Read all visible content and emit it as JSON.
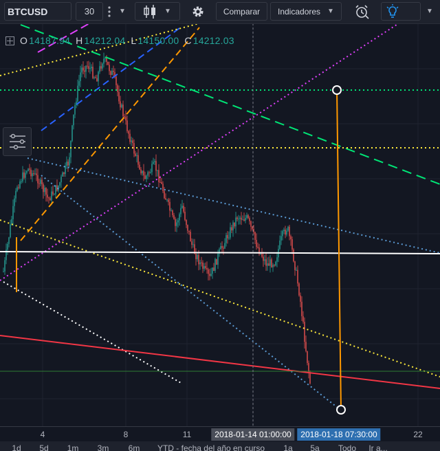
{
  "toolbar": {
    "symbol": "BTCUSD",
    "interval": "30",
    "more_icon": "vertical-dots-icon",
    "chart_type_icon": "candles-icon",
    "settings_icon": "gear-icon",
    "compare_label": "Comparar",
    "indicators_label": "Indicadores",
    "alert_icon": "alarm-clock-icon",
    "theme_icon": "lightbulb-icon"
  },
  "legend": {
    "o_label": "O",
    "o_value": "14187.94",
    "h_label": "H",
    "h_value": "14212.04",
    "l_label": "L",
    "l_value": "14150.00",
    "c_label": "C",
    "c_value": "14212.03"
  },
  "time_axis": {
    "labels": [
      "4",
      "8",
      "11",
      "22"
    ],
    "crosshair_date": "2018-01-14 01:00:00",
    "range_end_date": "2018-01-18 07:30:00"
  },
  "range_bar": {
    "items": [
      "1d",
      "5d",
      "1m",
      "3m",
      "6m",
      "YTD - fecha del año en curso",
      "1a",
      "5a",
      "Todo",
      "Ir a..."
    ]
  },
  "colors": {
    "background": "#131722",
    "candle_up": "#26a69a",
    "candle_down": "#ef5350",
    "badge_dark": "#4a4e59",
    "badge_blue": "#2e6fb0"
  }
}
